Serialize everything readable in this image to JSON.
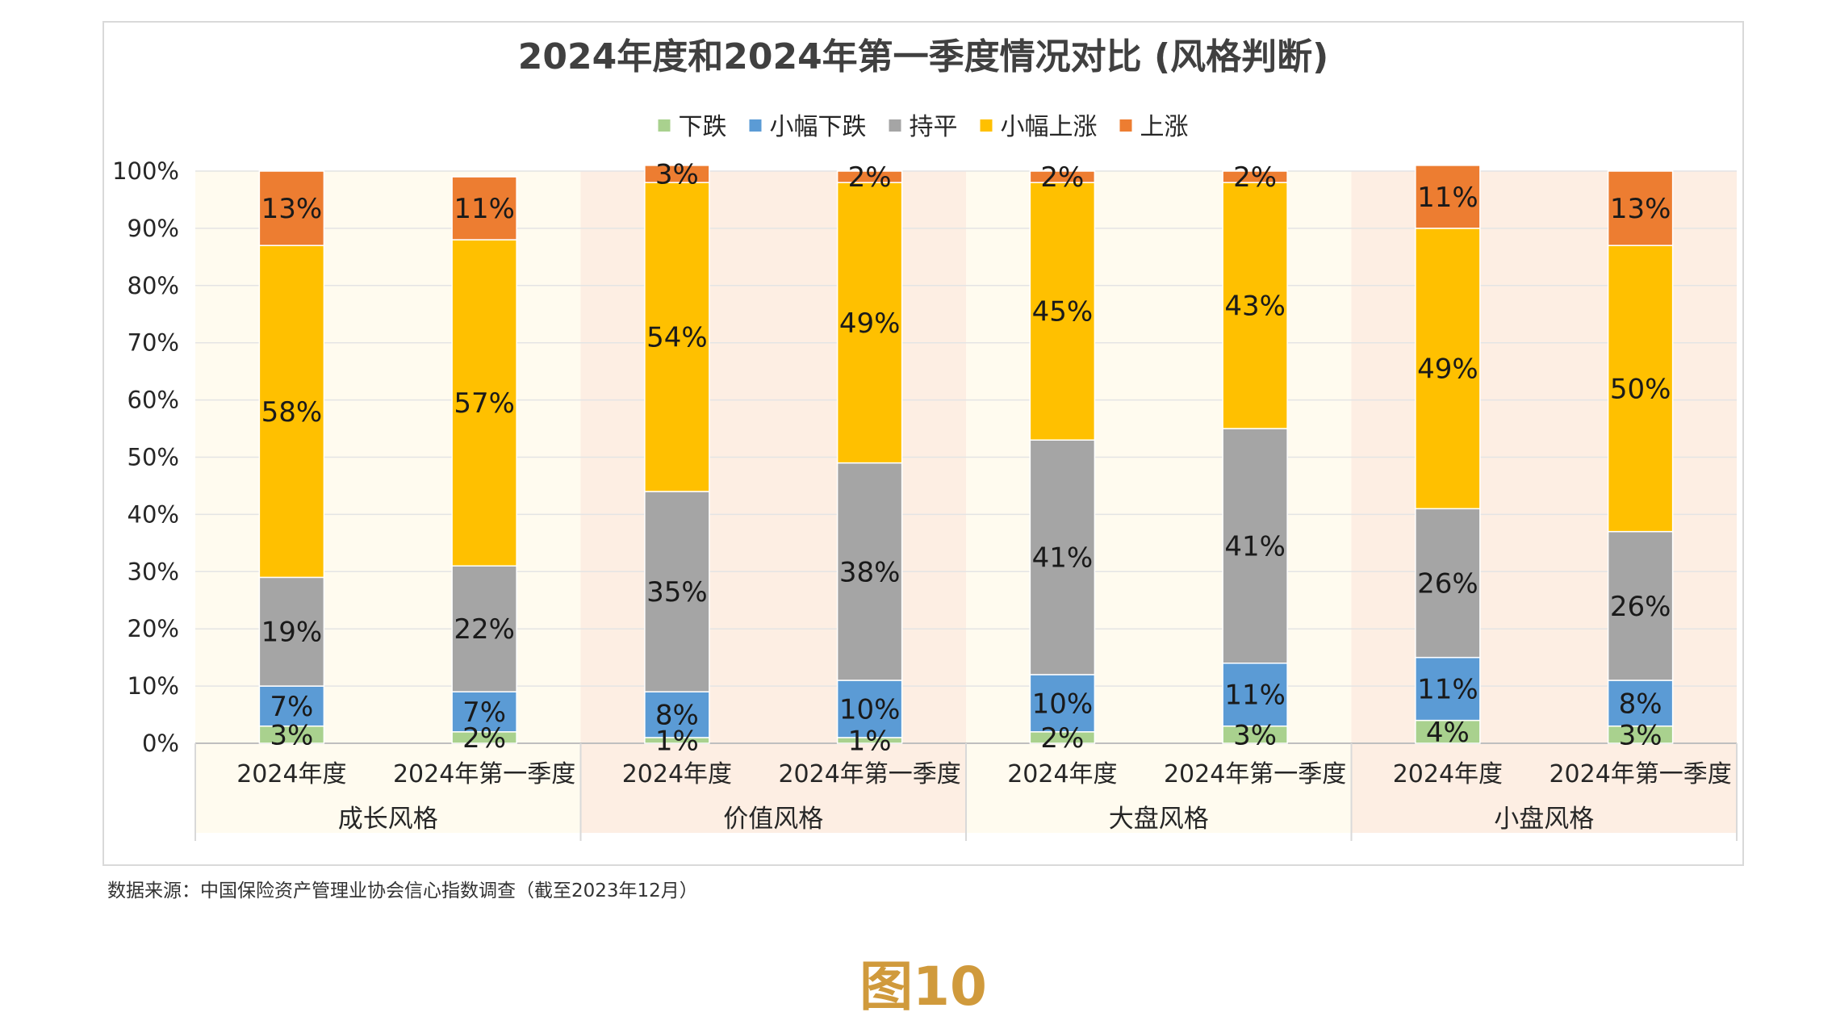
{
  "colors": {
    "down": "#a9d18e",
    "small_down": "#5b9bd5",
    "flat": "#a5a5a5",
    "small_up": "#ffc000",
    "up": "#ed7d31",
    "band_light": "#fffbef",
    "band_pink": "#fdeee3",
    "grid": "#e4e4e4",
    "figure_label": "#d09a3c"
  },
  "chart_data": {
    "type": "bar",
    "stacked": true,
    "title": "2024年度和2024年第一季度情况对比 (风格判断)",
    "ylim": [
      0,
      100
    ],
    "y_ticks": [
      "0%",
      "10%",
      "20%",
      "30%",
      "40%",
      "50%",
      "60%",
      "70%",
      "80%",
      "90%",
      "100%"
    ],
    "legend_position": "top",
    "series": [
      {
        "key": "down",
        "name": "下跌",
        "values": [
          3,
          2,
          1,
          1,
          2,
          3,
          4,
          3
        ]
      },
      {
        "key": "small_down",
        "name": "小幅下跌",
        "values": [
          7,
          7,
          8,
          10,
          10,
          11,
          11,
          8
        ]
      },
      {
        "key": "flat",
        "name": "持平",
        "values": [
          19,
          22,
          35,
          38,
          41,
          41,
          26,
          26
        ]
      },
      {
        "key": "small_up",
        "name": "小幅上涨",
        "values": [
          58,
          57,
          54,
          49,
          45,
          43,
          49,
          50
        ]
      },
      {
        "key": "up",
        "name": "上涨",
        "values": [
          13,
          11,
          3,
          2,
          2,
          2,
          11,
          13
        ]
      }
    ],
    "labels": [
      [
        "3%",
        "2%",
        "1%",
        "1%",
        "2%",
        "3%",
        "4%",
        "3%"
      ],
      [
        "7%",
        "7%",
        "8%",
        "10%",
        "10%",
        "11%",
        "11%",
        "8%"
      ],
      [
        "19%",
        "22%",
        "35%",
        "38%",
        "41%",
        "41%",
        "26%",
        "26%"
      ],
      [
        "58%",
        "57%",
        "54%",
        "49%",
        "45%",
        "43%",
        "49%",
        "50%"
      ],
      [
        "13%",
        "11%",
        "3%",
        "2%",
        "2%",
        "2%",
        "11%",
        "13%"
      ]
    ],
    "categories": [
      "2024年度",
      "2024年第一季度",
      "2024年度",
      "2024年第一季度",
      "2024年度",
      "2024年第一季度",
      "2024年度",
      "2024年第一季度"
    ],
    "groups": [
      "成长风格",
      "价值风格",
      "大盘风格",
      "小盘风格"
    ]
  },
  "source": "数据来源：中国保险资产管理业协会信心指数调查（截至2023年12月）",
  "figure_label": "图10"
}
